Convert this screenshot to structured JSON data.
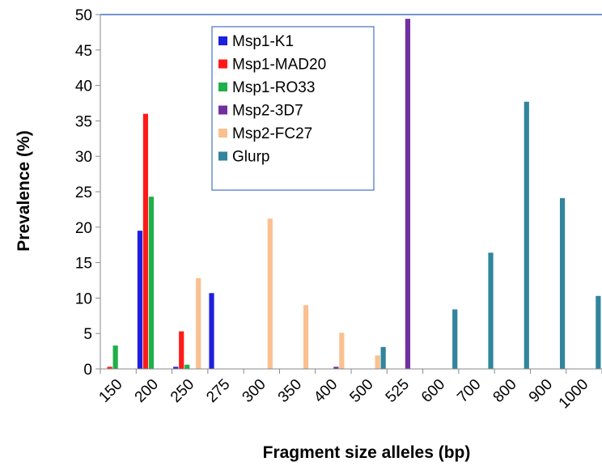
{
  "chart_data": {
    "type": "bar",
    "title": "",
    "xlabel": "Fragment size alleles (bp)",
    "ylabel": "Prevalence (%)",
    "ylim": [
      0,
      50
    ],
    "yticks": [
      "0",
      "5",
      "10",
      "15",
      "20",
      "25",
      "30",
      "35",
      "40",
      "45",
      "50"
    ],
    "categories": [
      "150",
      "200",
      "250",
      "275",
      "300",
      "350",
      "400",
      "500",
      "525",
      "600",
      "700",
      "800",
      "900",
      "1000"
    ],
    "grid": "horizontal top line only",
    "legend_position": "top-center",
    "series": [
      {
        "name": "Msp1-K1",
        "color": "#1f1fe0",
        "values": [
          0,
          19.5,
          0.3,
          10.7,
          0,
          0,
          0,
          0,
          0,
          0,
          0,
          0,
          0,
          0
        ]
      },
      {
        "name": "Msp1-MAD20",
        "color": "#ff1a1a",
        "values": [
          0.3,
          36,
          5.3,
          0,
          0,
          0,
          0,
          0,
          0,
          0,
          0,
          0,
          0,
          0
        ]
      },
      {
        "name": "Msp1-RO33",
        "color": "#1fb04a",
        "values": [
          3.3,
          24.3,
          0.6,
          0,
          0,
          0,
          0,
          0,
          0,
          0,
          0,
          0,
          0,
          0
        ]
      },
      {
        "name": "Msp2-3D7",
        "color": "#7030a0",
        "values": [
          0,
          0,
          0,
          0,
          0,
          0,
          0.3,
          0,
          49.4,
          0,
          0,
          0,
          0,
          0
        ]
      },
      {
        "name": "Msp2-FC27",
        "color": "#fac090",
        "values": [
          0,
          0,
          12.8,
          0,
          21.2,
          9,
          5.1,
          1.9,
          0,
          0,
          0,
          0,
          0,
          0
        ]
      },
      {
        "name": "Glurp",
        "color": "#31859c",
        "values": [
          0,
          0,
          0,
          0,
          0,
          0,
          0,
          3.1,
          0,
          8.4,
          16.4,
          37.7,
          24.1,
          10.3
        ]
      }
    ]
  }
}
